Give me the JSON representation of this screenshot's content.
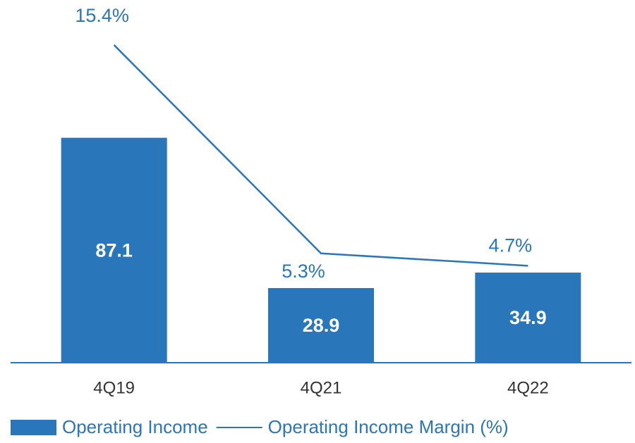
{
  "chart_data": {
    "type": "bar_line",
    "categories": [
      "4Q19",
      "4Q21",
      "4Q22"
    ],
    "series": [
      {
        "name": "Operating Income",
        "type": "bar",
        "color": "#2a76bb",
        "values": [
          87.1,
          28.9,
          34.9
        ]
      },
      {
        "name": "Operating Income Margin (%)",
        "type": "line",
        "axis": "y2",
        "color": "#2a76bb",
        "values": [
          15.4,
          5.3,
          4.7
        ],
        "value_labels": [
          "15.4%",
          "5.3%",
          "4.7%"
        ]
      }
    ],
    "ylim": [
      0,
      135
    ],
    "y2lim": [
      0,
      16.9
    ],
    "legend": "bottom"
  }
}
